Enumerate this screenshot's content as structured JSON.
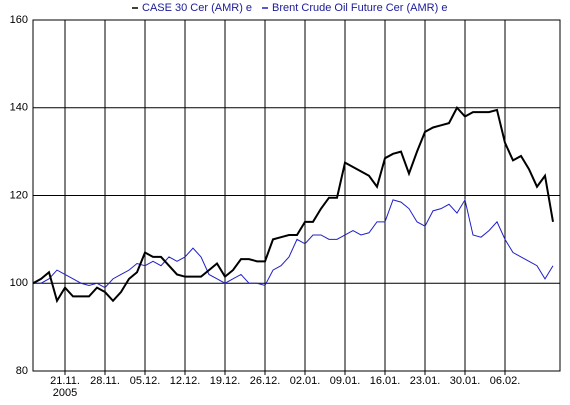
{
  "chart_data": {
    "type": "line",
    "categories": [
      null,
      null,
      null,
      null,
      "21.11.",
      null,
      null,
      null,
      null,
      "28.11.",
      null,
      null,
      null,
      null,
      "05.12.",
      null,
      null,
      null,
      null,
      "12.12.",
      null,
      null,
      null,
      null,
      "19.12.",
      null,
      null,
      null,
      null,
      "26.12.",
      null,
      null,
      null,
      null,
      "02.01.",
      null,
      null,
      null,
      null,
      "09.01.",
      null,
      null,
      null,
      null,
      "16.01.",
      null,
      null,
      null,
      null,
      "23.01.",
      null,
      null,
      null,
      null,
      "30.01.",
      null,
      null,
      null,
      null,
      "06.02.",
      null,
      null,
      null,
      null,
      null,
      null
    ],
    "x_sublabel": "2005",
    "series": [
      {
        "name": "CASE 30 Cer (AMR) e",
        "color": "#000000",
        "values": [
          100,
          101,
          102.5,
          96,
          99,
          97,
          97,
          97,
          99,
          98,
          96,
          98,
          101,
          102.5,
          107,
          106,
          106,
          104,
          102,
          101.5,
          101.5,
          101.5,
          103,
          104.5,
          101.5,
          103,
          105.5,
          105.5,
          105,
          105,
          110,
          110.5,
          111,
          111,
          114,
          114,
          117,
          119.5,
          119.5,
          127.5,
          126.5,
          125.5,
          124.5,
          122,
          128.5,
          129.5,
          130,
          125,
          130,
          134.5,
          135.5,
          136,
          136.5,
          140,
          138,
          139,
          139,
          139,
          139.5,
          132,
          128,
          129,
          126,
          122,
          124.5,
          114
        ]
      },
      {
        "name": "Brent Crude Oil Future Cer (AMR) e",
        "color": "#2020c8",
        "values": [
          100,
          100,
          101,
          103,
          102,
          101,
          100,
          99.5,
          100,
          99,
          101,
          102,
          103,
          104.5,
          104,
          105,
          104,
          106,
          105,
          106,
          108,
          106,
          102,
          101,
          100,
          101,
          102,
          100,
          100,
          99.5,
          103,
          104,
          106,
          110,
          109,
          111,
          111,
          110,
          110,
          111,
          112,
          111,
          111.5,
          114,
          114,
          119,
          118.5,
          117,
          114,
          113,
          116.5,
          117,
          118,
          116,
          119,
          111,
          110.5,
          112,
          114,
          110,
          107,
          106,
          105,
          104,
          101,
          104
        ]
      }
    ],
    "ylim": [
      80,
      160
    ],
    "yticks": [
      80,
      100,
      120,
      140,
      160
    ],
    "grid": true
  }
}
